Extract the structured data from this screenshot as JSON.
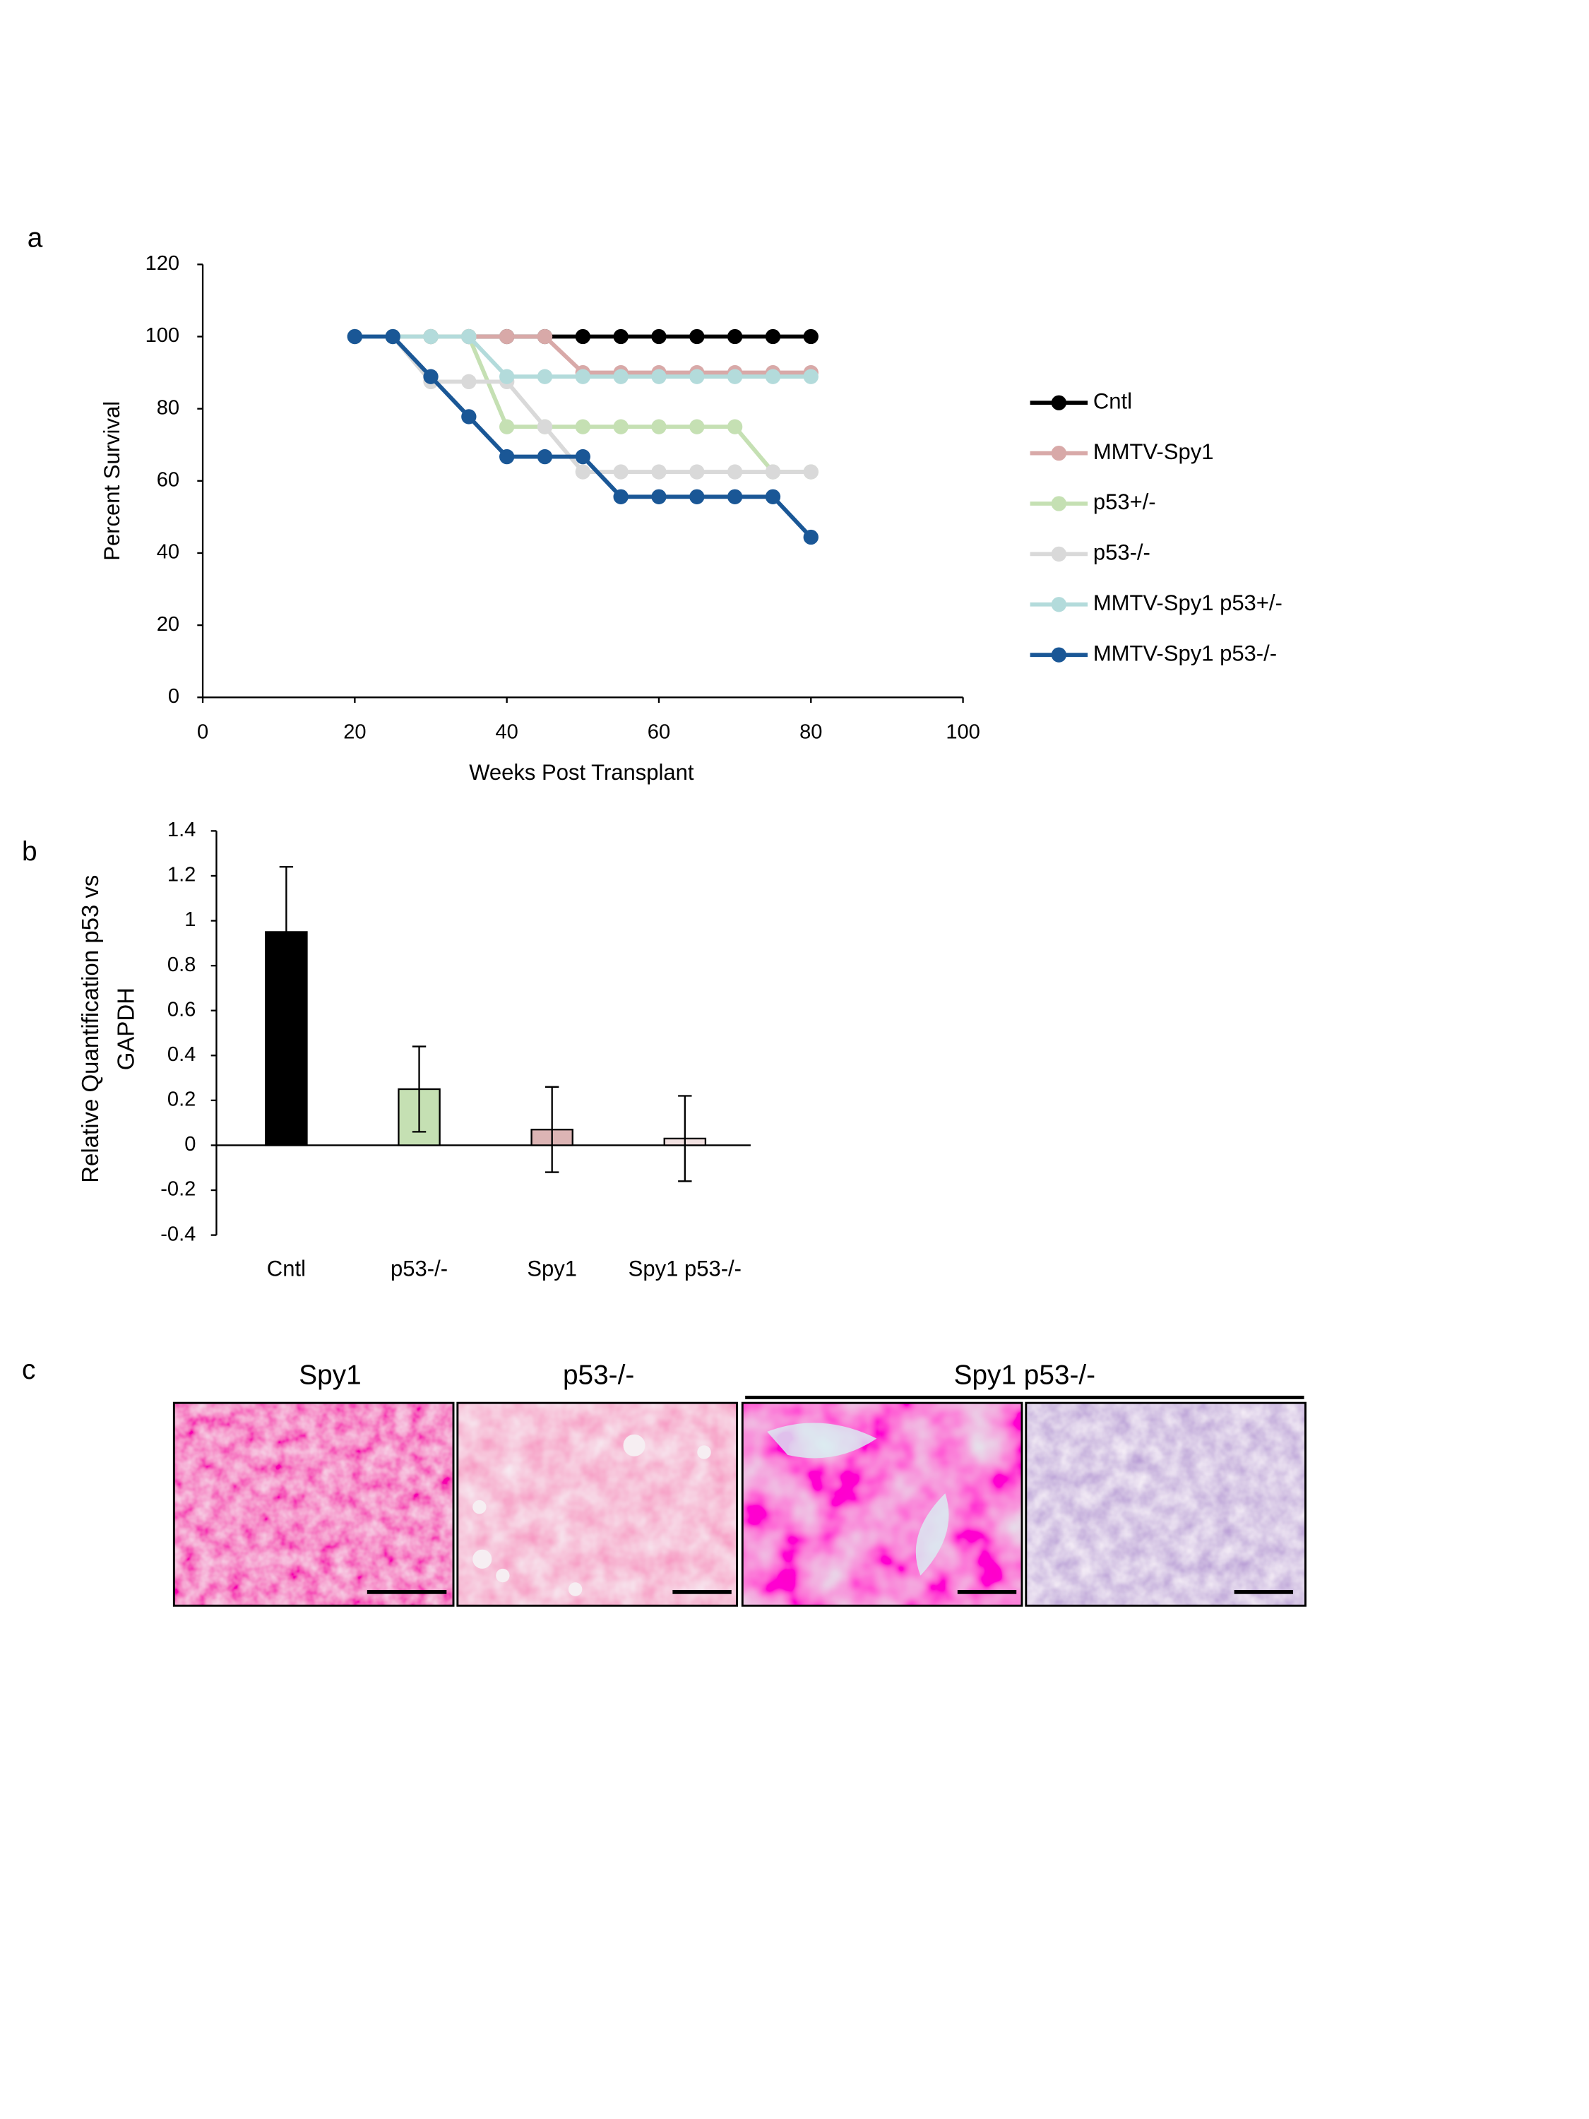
{
  "panel_labels": [
    "a",
    "b",
    "c"
  ],
  "chart_data": [
    {
      "type": "line",
      "xlabel": "Weeks Post Transplant",
      "ylabel": "Percent Survival",
      "x": [
        20,
        25,
        30,
        35,
        40,
        45,
        50,
        55,
        60,
        65,
        70,
        75,
        80
      ],
      "xlim": [
        0,
        100
      ],
      "xticks": [
        0,
        20,
        40,
        60,
        80,
        100
      ],
      "ylim": [
        0,
        120
      ],
      "yticks": [
        0,
        20,
        40,
        60,
        80,
        100,
        120
      ],
      "series": [
        {
          "name": "Cntl",
          "color": "#000000",
          "values": [
            100,
            100,
            100,
            100,
            100,
            100,
            100,
            100,
            100,
            100,
            100,
            100,
            100
          ]
        },
        {
          "name": "MMTV-Spy1",
          "color": "#d8a9a8",
          "values": [
            100,
            100,
            100,
            100,
            100,
            100,
            90,
            90,
            90,
            90,
            90,
            90,
            90
          ]
        },
        {
          "name": "p53+/-",
          "color": "#c5e0b3",
          "values": [
            100,
            100,
            100,
            100,
            75,
            75,
            75,
            75,
            75,
            75,
            75,
            62.5,
            62.5
          ]
        },
        {
          "name": "p53-/-",
          "color": "#d9d9d9",
          "values": [
            100,
            100,
            87.5,
            87.5,
            87.5,
            75,
            62.5,
            62.5,
            62.5,
            62.5,
            62.5,
            62.5,
            62.5
          ]
        },
        {
          "name": "MMTV-Spy1 p53+/-",
          "color": "#b3dbdb",
          "values": [
            100,
            100,
            100,
            100,
            88.9,
            88.9,
            88.9,
            88.9,
            88.9,
            88.9,
            88.9,
            88.9,
            88.9
          ]
        },
        {
          "name": "MMTV-Spy1 p53-/-",
          "color": "#1a5796",
          "values": [
            100,
            100,
            88.9,
            77.8,
            66.7,
            66.7,
            66.7,
            55.6,
            55.6,
            55.6,
            55.6,
            55.6,
            44.4
          ]
        }
      ]
    },
    {
      "type": "bar",
      "ylabel": "Relative Quantification p53 vs GAPDH",
      "categories": [
        "Cntl",
        "p53-/-",
        "Spy1",
        "Spy1 p53-/-"
      ],
      "values": [
        0.95,
        0.25,
        0.07,
        0.03
      ],
      "errors": [
        0.29,
        0.19,
        0.19,
        0.19
      ],
      "colors": [
        "#000000",
        "#c5e0b3",
        "#dcb4b4",
        "#f2e1e1"
      ],
      "ylim": [
        -0.4,
        1.4
      ],
      "yticks": [
        -0.4,
        -0.2,
        0,
        0.2,
        0.4,
        0.6,
        0.8,
        1,
        1.2,
        1.4
      ]
    }
  ],
  "histology": {
    "labels": [
      "Spy1",
      "p53-/-",
      "Spy1 p53-/-"
    ]
  }
}
